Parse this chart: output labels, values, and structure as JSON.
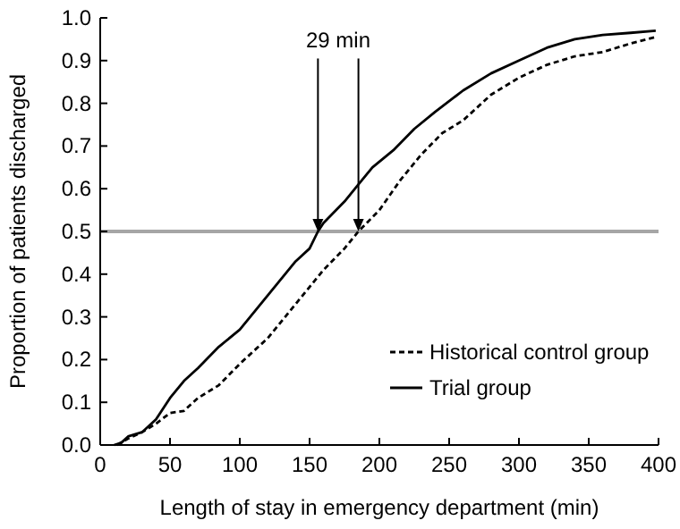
{
  "chart_data": {
    "type": "line",
    "xlabel": "Length of stay in emergency department (min)",
    "ylabel": "Proportion of patients discharged",
    "xlim": [
      0,
      400
    ],
    "xticks": [
      0,
      50,
      100,
      150,
      200,
      250,
      300,
      350,
      400
    ],
    "ylim": [
      0,
      1
    ],
    "yticks": [
      {
        "value": 0,
        "label": "0.0"
      },
      0.1,
      0.2,
      0.3,
      0.4,
      0.5,
      0.6,
      0.7,
      0.8,
      0.9,
      {
        "value": 1,
        "label": "1.0"
      }
    ],
    "legend": "bottom right",
    "annotations": [
      {
        "text": "29 min",
        "x": 156,
        "y": 0.5
      }
    ],
    "ref_lines": [
      {
        "axis": "y",
        "value": 0.5,
        "color": "#a6a6a6"
      }
    ],
    "series": [
      {
        "name": "Historical control group",
        "color": "#000000",
        "line_style": "dashed",
        "x": [
          12,
          20,
          30,
          40,
          50,
          60,
          70,
          85,
          100,
          120,
          140,
          160,
          175,
          185,
          200,
          215,
          230,
          245,
          260,
          280,
          300,
          320,
          340,
          360,
          380,
          398
        ],
        "values": [
          0,
          0.015,
          0.03,
          0.05,
          0.075,
          0.08,
          0.11,
          0.14,
          0.19,
          0.25,
          0.33,
          0.41,
          0.46,
          0.5,
          0.55,
          0.62,
          0.68,
          0.73,
          0.76,
          0.82,
          0.86,
          0.89,
          0.91,
          0.92,
          0.94,
          0.955
        ]
      },
      {
        "name": "Trial group",
        "color": "#000000",
        "line_style": "solid",
        "x": [
          10,
          15,
          20,
          30,
          40,
          50,
          60,
          70,
          85,
          100,
          120,
          140,
          150,
          156,
          160,
          175,
          185,
          195,
          210,
          225,
          240,
          260,
          280,
          300,
          320,
          340,
          360,
          380,
          398
        ],
        "values": [
          0,
          0.005,
          0.02,
          0.03,
          0.06,
          0.11,
          0.15,
          0.18,
          0.23,
          0.27,
          0.35,
          0.43,
          0.46,
          0.5,
          0.52,
          0.57,
          0.61,
          0.65,
          0.69,
          0.74,
          0.78,
          0.83,
          0.87,
          0.9,
          0.93,
          0.95,
          0.96,
          0.965,
          0.97
        ]
      }
    ]
  }
}
